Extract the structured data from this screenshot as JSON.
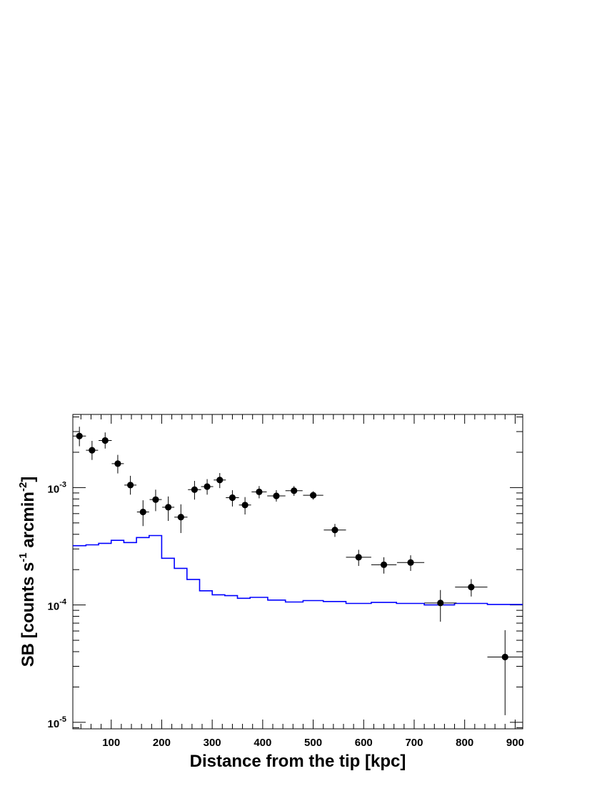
{
  "chart_data": {
    "type": "scatter",
    "xlabel": "Distance from the tip [kpc]",
    "ylabel_main": "SB [counts s",
    "ylabel_sup1": "-1",
    "ylabel_mid": " arcmin",
    "ylabel_sup2": "-2",
    "ylabel_end": "]",
    "xlim": [
      24,
      915
    ],
    "ylim": [
      8.8e-06,
      0.0042
    ],
    "y_scale": "log",
    "x_ticks": [
      100,
      200,
      300,
      400,
      500,
      600,
      700,
      800,
      900
    ],
    "x_tick_labels": [
      "100",
      "200",
      "300",
      "400",
      "500",
      "600",
      "700",
      "800",
      "900"
    ],
    "y_ticks": [
      {
        "value": 0.001,
        "mantissa": "10",
        "exponent": "-3"
      },
      {
        "value": 0.0001,
        "mantissa": "10",
        "exponent": "-4"
      },
      {
        "value": 1e-05,
        "mantissa": "10",
        "exponent": "-5"
      }
    ],
    "data_color": "#000000",
    "model_color": "#0000ff",
    "data_points": [
      {
        "x": 37,
        "y": 0.00275,
        "xerr": 13,
        "ylo": 0.00225,
        "yhi": 0.0033
      },
      {
        "x": 62,
        "y": 0.00208,
        "xerr": 12,
        "ylo": 0.00172,
        "yhi": 0.0025
      },
      {
        "x": 88,
        "y": 0.00252,
        "xerr": 13,
        "ylo": 0.00215,
        "yhi": 0.00295
      },
      {
        "x": 113,
        "y": 0.0016,
        "xerr": 12,
        "ylo": 0.00132,
        "yhi": 0.0019
      },
      {
        "x": 138,
        "y": 0.00105,
        "xerr": 12,
        "ylo": 0.00087,
        "yhi": 0.00126
      },
      {
        "x": 163,
        "y": 0.00062,
        "xerr": 12,
        "ylo": 0.00047,
        "yhi": 0.00078
      },
      {
        "x": 188,
        "y": 0.00079,
        "xerr": 12,
        "ylo": 0.00063,
        "yhi": 0.00096
      },
      {
        "x": 213,
        "y": 0.00068,
        "xerr": 12,
        "ylo": 0.00052,
        "yhi": 0.00084
      },
      {
        "x": 238,
        "y": 0.00056,
        "xerr": 13,
        "ylo": 0.00041,
        "yhi": 0.00072
      },
      {
        "x": 265,
        "y": 0.00096,
        "xerr": 13,
        "ylo": 0.00079,
        "yhi": 0.00114
      },
      {
        "x": 290,
        "y": 0.00102,
        "xerr": 12,
        "ylo": 0.00087,
        "yhi": 0.00118
      },
      {
        "x": 315,
        "y": 0.00116,
        "xerr": 12,
        "ylo": 0.00099,
        "yhi": 0.00133
      },
      {
        "x": 340,
        "y": 0.00082,
        "xerr": 13,
        "ylo": 0.00069,
        "yhi": 0.00095
      },
      {
        "x": 365,
        "y": 0.00071,
        "xerr": 12,
        "ylo": 0.00059,
        "yhi": 0.00083
      },
      {
        "x": 393,
        "y": 0.00092,
        "xerr": 15,
        "ylo": 0.00081,
        "yhi": 0.00103
      },
      {
        "x": 427,
        "y": 0.00085,
        "xerr": 18,
        "ylo": 0.00076,
        "yhi": 0.00095
      },
      {
        "x": 462,
        "y": 0.00094,
        "xerr": 17,
        "ylo": 0.00085,
        "yhi": 0.00103
      },
      {
        "x": 500,
        "y": 0.00086,
        "xerr": 20,
        "ylo": 0.00079,
        "yhi": 0.00093
      },
      {
        "x": 543,
        "y": 0.000435,
        "xerr": 22,
        "ylo": 0.00038,
        "yhi": 0.00049
      },
      {
        "x": 590,
        "y": 0.000255,
        "xerr": 25,
        "ylo": 0.000215,
        "yhi": 0.000295
      },
      {
        "x": 640,
        "y": 0.00022,
        "xerr": 25,
        "ylo": 0.000185,
        "yhi": 0.000255
      },
      {
        "x": 693,
        "y": 0.00023,
        "xerr": 27,
        "ylo": 0.000195,
        "yhi": 0.000265
      },
      {
        "x": 752,
        "y": 0.000104,
        "xerr": 32,
        "ylo": 7.2e-05,
        "yhi": 0.000134
      },
      {
        "x": 813,
        "y": 0.000142,
        "xerr": 32,
        "ylo": 0.000118,
        "yhi": 0.000166
      },
      {
        "x": 880,
        "y": 3.6e-05,
        "xerr": 35,
        "ylo": 1.15e-05,
        "yhi": 6.1e-05
      }
    ],
    "model_step": {
      "edges": [
        24,
        50,
        75,
        100,
        125,
        150,
        175,
        200,
        225,
        250,
        275,
        300,
        325,
        350,
        375,
        410,
        445,
        480,
        520,
        565,
        615,
        665,
        720,
        780,
        845,
        915
      ],
      "values": [
        0.00032,
        0.000325,
        0.000335,
        0.000355,
        0.00034,
        0.000375,
        0.00039,
        0.00025,
        0.000205,
        0.000165,
        0.000132,
        0.000122,
        0.00012,
        0.000114,
        0.000116,
        0.00011,
        0.000106,
        0.000109,
        0.000107,
        0.000103,
        0.000105,
        0.000103,
        0.0001,
        0.000103,
        0.000101
      ]
    }
  }
}
